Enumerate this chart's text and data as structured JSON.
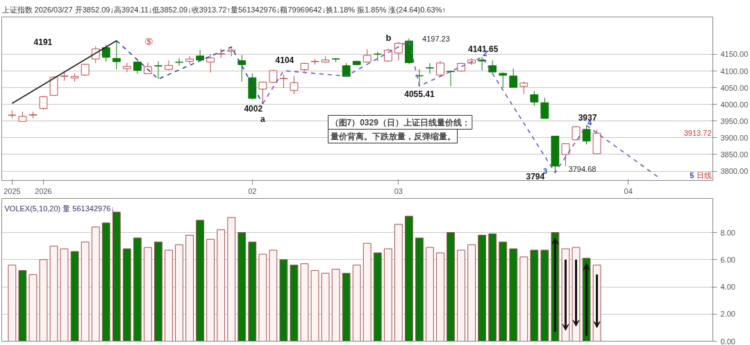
{
  "chart_data": [
    {
      "type": "candlestick",
      "title": "上证指数 2026/03/27 开3852.09↓高3924.11↓低3852.09↓收3913.72↑量561342976↓额79969642↓换1.18% 振1.85% 涨(24.64)0.63%↑",
      "categories": [
        "2025",
        null,
        null,
        "2026",
        null,
        null,
        null,
        null,
        null,
        null,
        null,
        null,
        null,
        null,
        null,
        null,
        null,
        null,
        null,
        null,
        null,
        null,
        null,
        "02",
        null,
        null,
        null,
        null,
        null,
        null,
        null,
        null,
        null,
        null,
        null,
        null,
        null,
        "03",
        null,
        null,
        null,
        null,
        null,
        null,
        null,
        null,
        null,
        null,
        null,
        null,
        null,
        null,
        null,
        null,
        null,
        null,
        null,
        null,
        null,
        "04",
        null,
        null,
        null,
        null,
        null,
        null,
        null
      ],
      "ohlc": [
        [
          3967,
          3982,
          3959,
          3968
        ],
        [
          3949,
          3978,
          3949,
          3964
        ],
        [
          3968,
          3978,
          3959,
          3969
        ],
        [
          3988,
          4026,
          3984,
          4023
        ],
        [
          4027,
          4084,
          4027,
          4082
        ],
        [
          4084,
          4098,
          4071,
          4085
        ],
        [
          4079,
          4093,
          4068,
          4084
        ],
        [
          4088,
          4122,
          4086,
          4120
        ],
        [
          4136,
          4174,
          4124,
          4166
        ],
        [
          4170,
          4178,
          4128,
          4141
        ],
        [
          4138,
          4191,
          4105,
          4128
        ],
        [
          4107,
          4125,
          4097,
          4114
        ],
        [
          4127,
          4130,
          4092,
          4102
        ],
        [
          4092,
          4125,
          4091,
          4113
        ],
        [
          4116,
          4129,
          4076,
          4115
        ],
        [
          4105,
          4132,
          4102,
          4117
        ],
        [
          4127,
          4139,
          4115,
          4126
        ],
        [
          4129,
          4145,
          4121,
          4136
        ],
        [
          4145,
          4163,
          4130,
          4133
        ],
        [
          4127,
          4151,
          4096,
          4139
        ],
        [
          4151,
          4167,
          4139,
          4152
        ],
        [
          4159,
          4169,
          4144,
          4163
        ],
        [
          4131,
          4148,
          4068,
          4119
        ],
        [
          4080,
          4093,
          4015,
          4018
        ],
        [
          4046,
          4068,
          4002,
          4067
        ],
        [
          4066,
          4104,
          4064,
          4101
        ],
        [
          4077,
          4090,
          4049,
          4078
        ],
        [
          4042,
          4085,
          4031,
          4065
        ],
        [
          4104,
          4125,
          4100,
          4123
        ],
        [
          4128,
          4136,
          4119,
          4129
        ],
        [
          4127,
          4144,
          4125,
          4133
        ],
        [
          4137,
          4139,
          4127,
          4136
        ],
        [
          4116,
          4124,
          4083,
          4084
        ],
        [
          4129,
          4131,
          4117,
          4119
        ],
        [
          4127,
          4166,
          4125,
          4147
        ],
        [
          4151,
          4158,
          4130,
          4150
        ],
        [
          4130,
          4167,
          4128,
          4163
        ],
        [
          4154,
          4188,
          4132,
          4183
        ],
        [
          4190,
          4197.23,
          4121,
          4125
        ],
        [
          4086,
          4105,
          4055.41,
          4085
        ],
        [
          4110,
          4124,
          4092,
          4109
        ],
        [
          4088,
          4130,
          4087,
          4124
        ],
        [
          4099,
          4102,
          4054,
          4098
        ],
        [
          4100,
          4125,
          4098,
          4123
        ],
        [
          4124,
          4138,
          4118,
          4133
        ],
        [
          4133,
          4141.65,
          4102,
          4130
        ],
        [
          4116,
          4132,
          4096,
          4097
        ],
        [
          4093,
          4096,
          4049,
          4087
        ],
        [
          4085,
          4108,
          4051,
          4051
        ],
        [
          4054,
          4068,
          4031,
          4064
        ],
        [
          4029,
          4040,
          3996,
          4007
        ],
        [
          4005,
          4020,
          3958,
          3958
        ],
        [
          3905,
          3905,
          3794.68,
          3815
        ],
        [
          3850,
          3883,
          3815,
          3882
        ],
        [
          3894,
          3935,
          3892,
          3933
        ],
        [
          3925,
          3937,
          3880,
          3890
        ],
        [
          3852.09,
          3924.11,
          3852.09,
          3913.72
        ],
        null,
        null,
        null,
        null,
        null,
        null,
        null,
        null,
        null,
        null
      ],
      "colors": [
        "#c04848",
        "#c04848",
        "#c04848",
        "#c04848",
        "#c04848",
        "#c04848",
        "#c04848",
        "#c04848",
        "#c04848",
        "#0a7a0a",
        "#0a7a0a",
        "#c04848",
        "#0a7a0a",
        "#c04848",
        "#0a7a0a",
        "#c04848",
        "#0a7a0a",
        "#c04848",
        "#0a7a0a",
        "#c04848",
        "#c04848",
        "#c04848",
        "#0a7a0a",
        "#0a7a0a",
        "#c04848",
        "#c04848",
        "#c04848",
        "#c04848",
        "#c04848",
        "#c04848",
        "#c04848",
        "#0a7a0a",
        "#0a7a0a",
        "#0a7a0a",
        "#c04848",
        "#0a7a0a",
        "#c04848",
        "#c04848",
        "#0a7a0a",
        "#0a7a0a",
        "#0a7a0a",
        "#c04848",
        "#0a7a0a",
        "#c04848",
        "#c04848",
        "#0a7a0a",
        "#0a7a0a",
        "#0a7a0a",
        "#0a7a0a",
        "#c04848",
        "#0a7a0a",
        "#0a7a0a",
        "#0a7a0a",
        "#c04848",
        "#c04848",
        "#0a7a0a",
        "#c04848",
        null,
        null,
        null,
        null,
        null,
        null,
        null,
        null,
        null,
        null
      ],
      "series": [
        {
          "type": "line",
          "color": "#222222",
          "line_style": "solid",
          "values": [
            4003,
            null,
            null,
            null,
            null,
            null,
            null,
            null,
            null,
            null,
            4191,
            null,
            null,
            null,
            null,
            null,
            null,
            null,
            null,
            null,
            null,
            null,
            null,
            null,
            null,
            null,
            null,
            null,
            null,
            null,
            null,
            null,
            null,
            null,
            null,
            null,
            null,
            null,
            null,
            null,
            null,
            null,
            null,
            null,
            null,
            null,
            null,
            null,
            null,
            null,
            null,
            null,
            null,
            null,
            null,
            null,
            null,
            null,
            null,
            null,
            null,
            null,
            null,
            null,
            null,
            null,
            null
          ]
        },
        {
          "type": "line",
          "color": "#2b3d9e",
          "line_style": "dashed",
          "values": [
            null,
            null,
            null,
            null,
            null,
            null,
            null,
            null,
            null,
            null,
            4191,
            null,
            null,
            null,
            4076,
            null,
            null,
            null,
            null,
            null,
            null,
            4172,
            null,
            null,
            4002,
            null,
            null,
            null,
            null,
            null,
            null,
            null,
            null,
            null,
            null,
            null,
            null,
            null,
            null,
            null,
            null,
            null,
            null,
            null,
            null,
            null,
            null,
            null,
            null,
            null,
            null,
            null,
            null,
            null,
            null,
            null,
            null,
            null,
            null,
            null,
            null,
            null,
            null,
            null,
            null,
            null,
            null
          ]
        },
        {
          "type": "line",
          "color": "#7b4fc9",
          "line_style": "dashed",
          "values": [
            null,
            null,
            null,
            null,
            null,
            null,
            null,
            null,
            null,
            null,
            null,
            null,
            null,
            null,
            null,
            null,
            null,
            null,
            null,
            null,
            null,
            null,
            null,
            null,
            4002,
            null,
            4101,
            null,
            null,
            null,
            null,
            null,
            4085,
            null,
            null,
            null,
            null,
            null,
            4190,
            4055,
            null,
            null,
            null,
            null,
            null,
            4142,
            null,
            null,
            null,
            null,
            null,
            null,
            3795,
            null,
            null,
            3937,
            null,
            null,
            null,
            null,
            null,
            null,
            3779,
            null,
            null,
            null,
            null
          ]
        }
      ],
      "ylim": [
        3772,
        4262
      ],
      "yticks": [
        {
          "value": 3800,
          "label": "3800.00"
        },
        {
          "value": 3850,
          "label": "3850.00"
        },
        {
          "value": 3900,
          "label": "3900.00"
        },
        {
          "value": 3950,
          "label": "3950.00"
        },
        {
          "value": 4000,
          "label": "4000.00"
        },
        {
          "value": 4050,
          "label": "4050.00"
        },
        {
          "value": 4100,
          "label": "4100.00"
        },
        {
          "value": 4150,
          "label": "4150.00"
        }
      ],
      "grid": "y",
      "annotations": [
        "4191",
        "⑤",
        "4002",
        "a",
        "4104",
        "b",
        "4197.23",
        "4141.65",
        "2",
        "4055.41",
        "3937",
        "4",
        "3",
        "3794",
        "3794.68",
        "5",
        "（图7）0329（日）上证日线量价线：",
        "量价背离。下跌放量，反弹缩量。",
        "3913.72",
        "日线"
      ]
    },
    {
      "type": "bar",
      "title": "VOLEX(5,10,20)  量 561342976↓",
      "categories": [
        null,
        null,
        null,
        null,
        null,
        null,
        null,
        null,
        null,
        null,
        null,
        null,
        null,
        null,
        null,
        null,
        null,
        null,
        null,
        null,
        null,
        null,
        null,
        null,
        null,
        null,
        null,
        null,
        null,
        null,
        null,
        null,
        null,
        null,
        null,
        null,
        null,
        null,
        null,
        null,
        null,
        null,
        null,
        null,
        null,
        null,
        null,
        null,
        null,
        null,
        null,
        null,
        null,
        null,
        null,
        null,
        null,
        null,
        null,
        null,
        null,
        null,
        null,
        null,
        null,
        null,
        null
      ],
      "values": [
        5.6,
        5.2,
        4.9,
        6.0,
        7.0,
        6.8,
        6.6,
        7.3,
        8.4,
        8.7,
        9.5,
        6.8,
        7.6,
        6.9,
        7.3,
        6.7,
        7.1,
        7.8,
        8.9,
        7.5,
        8.2,
        9.1,
        8.0,
        7.3,
        6.4,
        6.7,
        6.0,
        5.6,
        5.7,
        5.2,
        5.0,
        5.3,
        5.0,
        5.6,
        7.2,
        6.5,
        6.8,
        8.6,
        9.2,
        7.6,
        6.9,
        6.5,
        8.0,
        6.7,
        7.1,
        7.8,
        7.9,
        7.3,
        6.8,
        6.2,
        6.7,
        6.7,
        8.0,
        6.8,
        6.9,
        6.1,
        5.6,
        null,
        null,
        null,
        null,
        null,
        null,
        null,
        null,
        null,
        null
      ],
      "colors": [
        "#fdf3f3",
        "#0a7a0a",
        "#fdf3f3",
        "#fdf3f3",
        "#fdf3f3",
        "#fdf3f3",
        "#0a7a0a",
        "#fdf3f3",
        "#fdf3f3",
        "#0a7a0a",
        "#0a7a0a",
        "#0a7a0a",
        "#0a7a0a",
        "#fdf3f3",
        "#0a7a0a",
        "#fdf3f3",
        "#fdf3f3",
        "#fdf3f3",
        "#0a7a0a",
        "#fdf3f3",
        "#fdf3f3",
        "#fdf3f3",
        "#0a7a0a",
        "#0a7a0a",
        "#fdf3f3",
        "#fdf3f3",
        "#0a7a0a",
        "#0a7a0a",
        "#fdf3f3",
        "#fdf3f3",
        "#fdf3f3",
        "#fdf3f3",
        "#0a7a0a",
        "#fdf3f3",
        "#fdf3f3",
        "#0a7a0a",
        "#fdf3f3",
        "#fdf3f3",
        "#0a7a0a",
        "#0a7a0a",
        "#fdf3f3",
        "#fdf3f3",
        "#0a7a0a",
        "#fdf3f3",
        "#fdf3f3",
        "#0a7a0a",
        "#0a7a0a",
        "#0a7a0a",
        "#0a7a0a",
        "#fdf3f3",
        "#0a7a0a",
        "#0a7a0a",
        "#0a7a0a",
        "#fdf3f3",
        "#fdf3f3",
        "#0a7a0a",
        "#fdf3f3",
        null,
        null,
        null,
        null,
        null,
        null,
        null,
        null,
        null,
        null
      ],
      "ylim": [
        0,
        10.5
      ],
      "yticks": [
        {
          "value": 0,
          "label": "0.00"
        },
        {
          "value": 2,
          "label": "2.00"
        },
        {
          "value": 4,
          "label": "4.00"
        },
        {
          "value": 6,
          "label": "6.00"
        },
        {
          "value": 8,
          "label": "8.00"
        }
      ],
      "grid": "y",
      "tick_labels": "y"
    }
  ]
}
